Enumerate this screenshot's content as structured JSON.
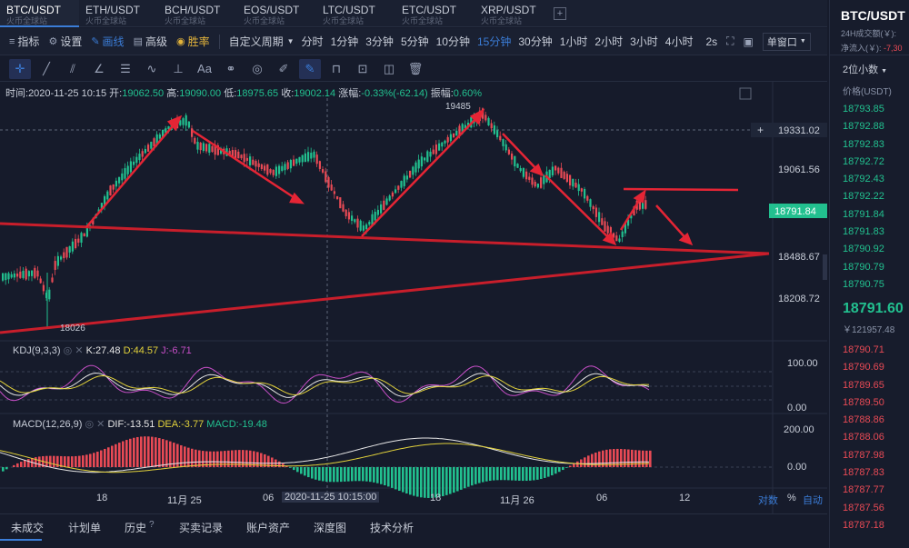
{
  "tabs": [
    {
      "symbol": "BTC/USDT",
      "sub": "火币全球站"
    },
    {
      "symbol": "ETH/USDT",
      "sub": "火币全球站"
    },
    {
      "symbol": "BCH/USDT",
      "sub": "火币全球站"
    },
    {
      "symbol": "EOS/USDT",
      "sub": "火币全球站"
    },
    {
      "symbol": "LTC/USDT",
      "sub": "火币全球站"
    },
    {
      "symbol": "ETC/USDT",
      "sub": "火币全球站"
    },
    {
      "symbol": "XRP/USDT",
      "sub": "火币全球站"
    }
  ],
  "tab_add": "+",
  "toolbar": {
    "indicators": "指标",
    "settings": "设置",
    "draw": "画线",
    "advanced": "高级",
    "winrate": "胜率",
    "custom_period": "自定义周期",
    "periods": [
      "分时",
      "1分钟",
      "3分钟",
      "5分钟",
      "10分钟",
      "15分钟",
      "30分钟",
      "1小时",
      "2小时",
      "3小时",
      "4小时"
    ],
    "active_period": "15分钟",
    "seconds": "2s",
    "window_mode": "单窗口"
  },
  "draw_tools": [
    "crosshair-icon",
    "line-icon",
    "ray-icon",
    "angle-icon",
    "parallel-icon",
    "wave-icon",
    "horizontal-ray-icon",
    "text-icon",
    "fib-icon",
    "shape-icon",
    "ruler-icon",
    "pen-icon",
    "magnet-icon",
    "lock-icon",
    "hide-icon",
    "trash-icon"
  ],
  "draw_tools_text": {
    "text": "Aa"
  },
  "info": {
    "time_label": "时间:",
    "time": "2020-11-25 10:15",
    "open_label": "开:",
    "open": "19062.50",
    "high_label": "高:",
    "high": "19090.00",
    "low_label": "低:",
    "low": "18975.65",
    "close_label": "收:",
    "close": "19002.14",
    "change_label": "涨幅:",
    "change": "-0.33%(-62.14)",
    "amp_label": "振幅:",
    "amp": "0.60%"
  },
  "price_axis": [
    "19061.56",
    "18488.67",
    "18208.72"
  ],
  "price_marker": "19331.02",
  "price_current": "18791.84",
  "high_annot": "19485",
  "low_annot": "18026",
  "kdj": {
    "label": "KDJ(9,3,3)",
    "k": "K:27.48",
    "d": "D:44.57",
    "j": "J:-6.71",
    "axis": [
      "100.00",
      "0.00"
    ]
  },
  "macd": {
    "label": "MACD(12,26,9)",
    "dif": "DIF:-13.51",
    "dea": "DEA:-3.77",
    "macd": "MACD:-19.48",
    "axis": [
      "200.00",
      "0.00"
    ]
  },
  "time_axis": [
    "18",
    "11月 25",
    "06",
    "18",
    "11月 26",
    "06",
    "12"
  ],
  "time_cursor": "2020-11-25 10:15:00",
  "axis_opts": {
    "log": "对数",
    "pct": "%",
    "auto": "自动"
  },
  "right_panel": {
    "symbol": "BTC/USDT",
    "vol_label": "24H成交额(￥):",
    "inflow_label": "净流入(￥):",
    "inflow_value": "-7,30",
    "depth": "2位小数",
    "price_header": "价格(USDT)",
    "asks": [
      "18793.85",
      "18792.88",
      "18792.83",
      "18792.72",
      "18792.43",
      "18792.22",
      "18791.84",
      "18791.83",
      "18790.92",
      "18790.79",
      "18790.75"
    ],
    "last": "18791.60",
    "last_cny": "￥121957.48",
    "bids": [
      "18790.71",
      "18790.69",
      "18789.65",
      "18789.50",
      "18788.86",
      "18788.06",
      "18787.98",
      "18787.83",
      "18787.77",
      "18787.56",
      "18787.18"
    ]
  },
  "bottom_tabs": [
    "未成交",
    "计划单",
    "历史",
    "买卖记录",
    "账户资产",
    "深度图",
    "技术分析"
  ],
  "colors": {
    "up": "#22c08f",
    "down": "#e84a55",
    "accent": "#3b7dd8",
    "trend": "#c81e2b"
  }
}
